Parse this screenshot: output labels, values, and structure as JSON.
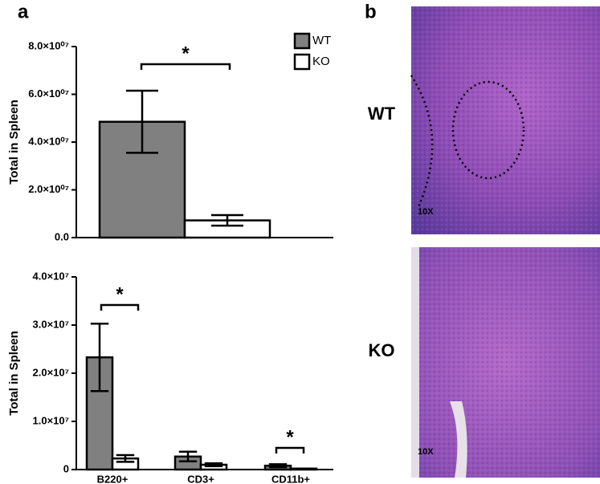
{
  "panel_labels": [
    "a",
    "b"
  ],
  "chart_data": [
    {
      "type": "bar",
      "y_label": "Total in Spleen",
      "categories": [
        null
      ],
      "series": [
        {
          "name": "WT",
          "color": "#808080",
          "values": [
            48500000
          ],
          "errors": [
            13000000
          ]
        },
        {
          "name": "KO",
          "color": "#ffffff",
          "values": [
            7200000
          ],
          "errors": [
            2200000
          ]
        }
      ],
      "ylim": [
        0,
        80000000
      ],
      "yticks": [
        {
          "value": 0,
          "label": "0.0"
        },
        {
          "value": 20000000,
          "label": "2.0×10⁰⁷"
        },
        {
          "value": 40000000,
          "label": "4.0×10⁰⁷"
        },
        {
          "value": 60000000,
          "label": "6.0×10⁰⁷"
        },
        {
          "value": 80000000,
          "label": "8.0×10⁰⁷"
        }
      ],
      "legend": "top-right",
      "annotations": [
        "*"
      ]
    },
    {
      "type": "bar",
      "y_label": "Total in Spleen",
      "categories": [
        "B220+",
        "CD3+",
        "CD11b+"
      ],
      "series": [
        {
          "name": "WT",
          "color": "#808080",
          "values": [
            23300000,
            2700000,
            800000
          ],
          "errors": [
            7000000,
            1000000,
            300000
          ]
        },
        {
          "name": "KO",
          "color": "#ffffff",
          "values": [
            2300000,
            1000000,
            200000
          ],
          "errors": [
            700000,
            300000,
            0
          ]
        }
      ],
      "ylim": [
        0,
        40000000
      ],
      "yticks": [
        0,
        {
          "value": 10000000,
          "label": "1.0×10⁷"
        },
        {
          "value": 20000000,
          "label": "2.0×10⁷"
        },
        {
          "value": 30000000,
          "label": "3.0×10⁷"
        },
        {
          "value": 40000000,
          "label": "4.0×10⁷"
        }
      ],
      "annotations": [
        "*",
        "*"
      ]
    }
  ],
  "images": [
    {
      "label": "WT",
      "magnification": "10X"
    },
    {
      "label": "KO",
      "magnification": "10X"
    }
  ]
}
